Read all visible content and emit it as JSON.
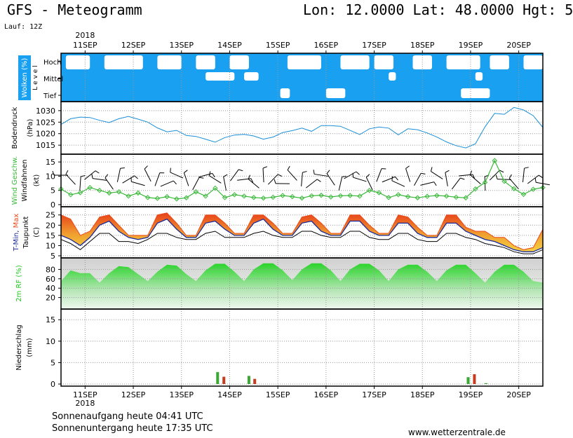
{
  "header": {
    "title": "GFS - Meteogramm",
    "coords": "Lon: 12.0000 Lat: 48.0000 Hgt: 5",
    "run": "Lauf: 12Z"
  },
  "footer": {
    "sunrise": "Sonnenaufgang heute 04:41 UTC",
    "sunset": "Sonnenuntergang heute 17:35 UTC",
    "site": "www.wetterzentrale.de"
  },
  "colors": {
    "cloud_sky": "#1aa0f0",
    "pressure": "#1a8fd8",
    "wind": "#3ab83a",
    "tmax": "#e84a1a",
    "tmin": "#1a2a9a",
    "humidity": "#22c822",
    "precip_red": "#c83c1e",
    "precip_green": "#3aa832"
  },
  "chart_data": [
    {
      "type": "heatmap",
      "panel": "Wolken (%)",
      "ylabel": "Wolken (%)",
      "ylabel2": "L e v e l",
      "levels": [
        "Hoch",
        "Mittel",
        "Tief"
      ],
      "x_year": "2018",
      "x_labels": [
        "11SEP",
        "12SEP",
        "13SEP",
        "14SEP",
        "15SEP",
        "16SEP",
        "17SEP",
        "18SEP",
        "19SEP",
        "20SEP"
      ],
      "clear_patches": [
        {
          "level": "Hoch",
          "from": 10.6,
          "to": 11.1
        },
        {
          "level": "Hoch",
          "from": 11.4,
          "to": 12.2
        },
        {
          "level": "Hoch",
          "from": 12.5,
          "to": 13.0
        },
        {
          "level": "Hoch",
          "from": 13.3,
          "to": 13.7
        },
        {
          "level": "Hoch",
          "from": 14.0,
          "to": 14.4
        },
        {
          "level": "Hoch",
          "from": 15.2,
          "to": 15.9
        },
        {
          "level": "Hoch",
          "from": 16.3,
          "to": 16.9
        },
        {
          "level": "Hoch",
          "from": 17.0,
          "to": 17.4
        },
        {
          "level": "Hoch",
          "from": 17.8,
          "to": 18.2
        },
        {
          "level": "Hoch",
          "from": 18.5,
          "to": 19.2
        },
        {
          "level": "Hoch",
          "from": 19.4,
          "to": 19.8
        },
        {
          "level": "Hoch",
          "from": 20.1,
          "to": 20.5
        },
        {
          "level": "Mittel",
          "from": 13.5,
          "to": 14.1
        },
        {
          "level": "Mittel",
          "from": 14.3,
          "to": 14.6
        },
        {
          "level": "Mittel",
          "from": 17.3,
          "to": 17.45
        },
        {
          "level": "Mittel",
          "from": 19.1,
          "to": 19.25
        },
        {
          "level": "Tief",
          "from": 15.05,
          "to": 15.25
        },
        {
          "level": "Tief",
          "from": 16.0,
          "to": 16.4
        },
        {
          "level": "Tief",
          "from": 18.8,
          "to": 19.4
        }
      ]
    },
    {
      "type": "line",
      "panel": "Bodendruck",
      "ylabel": "Bodendruck",
      "unit": "(hPa)",
      "ylim": [
        1012,
        1033
      ],
      "yticks": [
        1015,
        1020,
        1025,
        1030
      ],
      "x": [
        10.5,
        10.7,
        10.9,
        11.1,
        11.3,
        11.5,
        11.7,
        11.9,
        12.1,
        12.3,
        12.5,
        12.7,
        12.9,
        13.1,
        13.3,
        13.5,
        13.7,
        13.9,
        14.1,
        14.3,
        14.5,
        14.7,
        14.9,
        15.1,
        15.3,
        15.5,
        15.7,
        15.9,
        16.1,
        16.3,
        16.5,
        16.7,
        16.9,
        17.1,
        17.3,
        17.5,
        17.7,
        17.9,
        18.1,
        18.3,
        18.5,
        18.7,
        18.9,
        19.1,
        19.3,
        19.5,
        19.7,
        19.9,
        20.1,
        20.3,
        20.5
      ],
      "values": [
        1024.0,
        1026.5,
        1027.2,
        1027.0,
        1025.8,
        1024.8,
        1026.5,
        1027.5,
        1026.3,
        1025.0,
        1022.5,
        1020.8,
        1021.4,
        1019.2,
        1018.8,
        1017.6,
        1016.3,
        1018.3,
        1019.4,
        1019.7,
        1019.0,
        1017.6,
        1018.5,
        1020.5,
        1021.3,
        1022.4,
        1021.0,
        1023.5,
        1023.5,
        1023.2,
        1021.4,
        1019.6,
        1022.1,
        1022.9,
        1022.4,
        1019.5,
        1022.1,
        1021.7,
        1020.3,
        1018.5,
        1016.4,
        1014.8,
        1013.8,
        1015.6,
        1023.0,
        1028.8,
        1028.4,
        1031.4,
        1030.3,
        1027.8,
        1022.7
      ]
    },
    {
      "type": "line",
      "panel": "Wind",
      "ylabel": "Wind Geschw.",
      "ylabel2": "Windfahnen",
      "unit": "(kt)",
      "ylim": [
        0,
        17
      ],
      "yticks": [
        0,
        5,
        10,
        15
      ],
      "x": [
        10.5,
        10.7,
        10.9,
        11.1,
        11.3,
        11.5,
        11.7,
        11.9,
        12.1,
        12.3,
        12.5,
        12.7,
        12.9,
        13.1,
        13.3,
        13.5,
        13.7,
        13.9,
        14.1,
        14.3,
        14.5,
        14.7,
        14.9,
        15.1,
        15.3,
        15.5,
        15.7,
        15.9,
        16.1,
        16.3,
        16.5,
        16.7,
        16.9,
        17.1,
        17.3,
        17.5,
        17.7,
        17.9,
        18.1,
        18.3,
        18.5,
        18.7,
        18.9,
        19.1,
        19.3,
        19.5,
        19.7,
        19.9,
        20.1,
        20.3,
        20.5
      ],
      "values": [
        5.5,
        3.5,
        4.2,
        6.0,
        5.0,
        4.1,
        4.5,
        3.0,
        4.1,
        2.5,
        2.2,
        2.8,
        2.0,
        2.4,
        4.5,
        3.0,
        5.8,
        2.5,
        3.5,
        3.0,
        2.5,
        2.3,
        2.6,
        3.2,
        2.8,
        2.3,
        3.1,
        3.3,
        2.7,
        3.1,
        3.2,
        3.0,
        5.0,
        4.2,
        2.5,
        3.5,
        2.8,
        2.4,
        2.9,
        3.2,
        3.0,
        2.6,
        2.4,
        5.5,
        7.8,
        15.5,
        8.2,
        5.6,
        3.6,
        5.4,
        6.0
      ]
    },
    {
      "type": "area",
      "panel": "Temperatur",
      "ylabel": "T-Min, Max",
      "ylabel2": "Taupunkt",
      "unit": "(C)",
      "ylim": [
        5,
        28
      ],
      "yticks": [
        5,
        10,
        15,
        20,
        25
      ],
      "x": [
        10.5,
        10.7,
        10.9,
        11.1,
        11.3,
        11.5,
        11.7,
        11.9,
        12.1,
        12.3,
        12.5,
        12.7,
        12.9,
        13.1,
        13.3,
        13.5,
        13.7,
        13.9,
        14.1,
        14.3,
        14.5,
        14.7,
        14.9,
        15.1,
        15.3,
        15.5,
        15.7,
        15.9,
        16.1,
        16.3,
        16.5,
        16.7,
        16.9,
        17.1,
        17.3,
        17.5,
        17.7,
        17.9,
        18.1,
        18.3,
        18.5,
        18.7,
        18.9,
        19.1,
        19.3,
        19.5,
        19.7,
        19.9,
        20.1,
        20.3,
        20.5
      ],
      "series": [
        {
          "name": "Max",
          "values": [
            25,
            23,
            15,
            17,
            24,
            25,
            20,
            15,
            15,
            15,
            25,
            26,
            21,
            15,
            15,
            25,
            25,
            21,
            16,
            16,
            25,
            25,
            21,
            16,
            16,
            24,
            25,
            21,
            16,
            16,
            25,
            25,
            20,
            16,
            16,
            25,
            24,
            19,
            15,
            15,
            25,
            25,
            19,
            17,
            17,
            14,
            14,
            10,
            8,
            9,
            18
          ]
        },
        {
          "name": "Min",
          "values": [
            15,
            13,
            10,
            14,
            20,
            22,
            17,
            14,
            13,
            14,
            21,
            23,
            18,
            14,
            14,
            21,
            22,
            18,
            15,
            15,
            21,
            23,
            18,
            15,
            15,
            21,
            22,
            17,
            15,
            15,
            22,
            22,
            17,
            15,
            15,
            21,
            21,
            16,
            14,
            14,
            21,
            21,
            17,
            15,
            13,
            12,
            10,
            8,
            7,
            7,
            9
          ]
        },
        {
          "name": "Taupunkt",
          "values": [
            13,
            11,
            8,
            12,
            16,
            16,
            12,
            12,
            11,
            13,
            16,
            16,
            14,
            13,
            13,
            16,
            17,
            14,
            14,
            14,
            16,
            17,
            15,
            14,
            14,
            17,
            17,
            15,
            14,
            14,
            17,
            17,
            14,
            13,
            13,
            16,
            16,
            13,
            12,
            12,
            16,
            16,
            14,
            13,
            11,
            10,
            9,
            7,
            6,
            6,
            8
          ]
        }
      ]
    },
    {
      "type": "area",
      "panel": "2m RF",
      "ylabel": "2m RF (%)",
      "ylim": [
        0,
        100
      ],
      "yticks": [
        20,
        40,
        60,
        80
      ],
      "x": [
        10.5,
        10.7,
        10.9,
        11.1,
        11.3,
        11.5,
        11.7,
        11.9,
        12.1,
        12.3,
        12.5,
        12.7,
        12.9,
        13.1,
        13.3,
        13.5,
        13.7,
        13.9,
        14.1,
        14.3,
        14.5,
        14.7,
        14.9,
        15.1,
        15.3,
        15.5,
        15.7,
        15.9,
        16.1,
        16.3,
        16.5,
        16.7,
        16.9,
        17.1,
        17.3,
        17.5,
        17.7,
        17.9,
        18.1,
        18.3,
        18.5,
        18.7,
        18.9,
        19.1,
        19.3,
        19.5,
        19.7,
        19.9,
        20.1,
        20.3,
        20.5
      ],
      "values": [
        55,
        78,
        72,
        72,
        52,
        72,
        87,
        85,
        70,
        55,
        75,
        90,
        88,
        70,
        55,
        78,
        92,
        92,
        75,
        55,
        80,
        93,
        93,
        78,
        57,
        80,
        93,
        93,
        78,
        55,
        80,
        92,
        92,
        78,
        55,
        80,
        90,
        90,
        75,
        55,
        78,
        90,
        90,
        72,
        52,
        75,
        90,
        90,
        75,
        55,
        52
      ]
    },
    {
      "type": "bar",
      "panel": "Niederschlag",
      "ylabel": "Niederschlag",
      "unit": "(mm)",
      "ylim": [
        0,
        17
      ],
      "yticks": [
        0,
        5,
        10,
        15
      ],
      "series": [
        {
          "x": [
            13.75,
            13.88,
            14.4,
            14.52,
            18.95,
            19.08,
            19.32
          ],
          "values": [
            2.8,
            1.7,
            1.9,
            1.2,
            1.6,
            2.3,
            0.2
          ]
        }
      ]
    }
  ]
}
